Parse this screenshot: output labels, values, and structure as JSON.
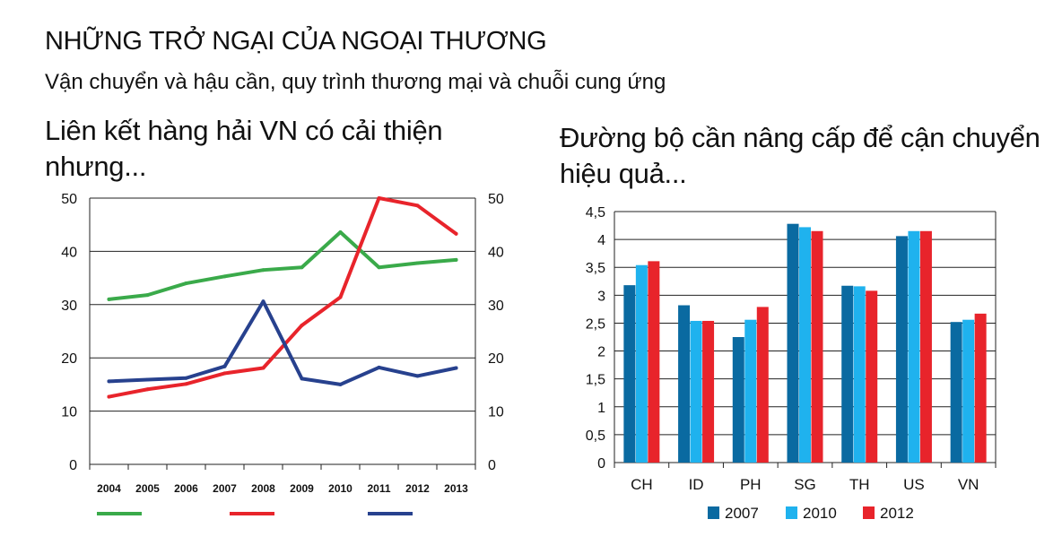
{
  "header": {
    "title": "NHỮNG TRỞ NGẠI CỦA NGOẠI THƯƠNG",
    "subtitle": "Vận chuyển và hậu cần, quy trình thương mại và chuỗi cung ứng"
  },
  "chart_data": [
    {
      "type": "line",
      "title_lines": [
        "Liên kết hàng hải VN có cải thiện",
        "nhưng..."
      ],
      "x": [
        "2004",
        "2005",
        "2006",
        "2007",
        "2008",
        "2009",
        "2010",
        "2011",
        "2012",
        "2013"
      ],
      "ylim": [
        0,
        50
      ],
      "yticks": [
        "0",
        "10",
        "20",
        "30",
        "40",
        "50"
      ],
      "grid": true,
      "legend": "bottom (colored line swatches, no labels)",
      "series": [
        {
          "color": "#3aaa4a",
          "values": [
            31,
            31.8,
            34,
            35.3,
            36.5,
            37,
            43.6,
            37,
            37.8,
            38.4
          ]
        },
        {
          "color": "#e8242b",
          "values": [
            12.7,
            14.1,
            15.1,
            17.1,
            18.1,
            26.1,
            31.4,
            50,
            48.6,
            43.3
          ]
        },
        {
          "color": "#27418e",
          "values": [
            15.6,
            15.9,
            16.2,
            18.4,
            30.6,
            16.1,
            15,
            18.2,
            16.6,
            18.1
          ]
        }
      ]
    },
    {
      "type": "bar",
      "title_lines": [
        "Đường bộ cần nâng cấp để cận chuyển",
        "hiệu quả..."
      ],
      "categories": [
        "CH",
        "ID",
        "PH",
        "SG",
        "TH",
        "US",
        "VN"
      ],
      "ylim": [
        0,
        4.5
      ],
      "yticks": [
        "0",
        "0,5",
        "1",
        "1,5",
        "2",
        "2,5",
        "3",
        "3,5",
        "4",
        "4,5"
      ],
      "grid": true,
      "legend": "bottom",
      "series": [
        {
          "name": "2007",
          "color": "#0a6aa1",
          "values": [
            3.18,
            2.82,
            2.25,
            4.28,
            3.17,
            4.06,
            2.52
          ]
        },
        {
          "name": "2010",
          "color": "#1fb2ee",
          "values": [
            3.54,
            2.54,
            2.56,
            4.22,
            3.16,
            4.15,
            2.56
          ]
        },
        {
          "name": "2012",
          "color": "#e8242b",
          "values": [
            3.61,
            2.54,
            2.79,
            4.15,
            3.08,
            4.15,
            2.67
          ]
        }
      ]
    }
  ]
}
